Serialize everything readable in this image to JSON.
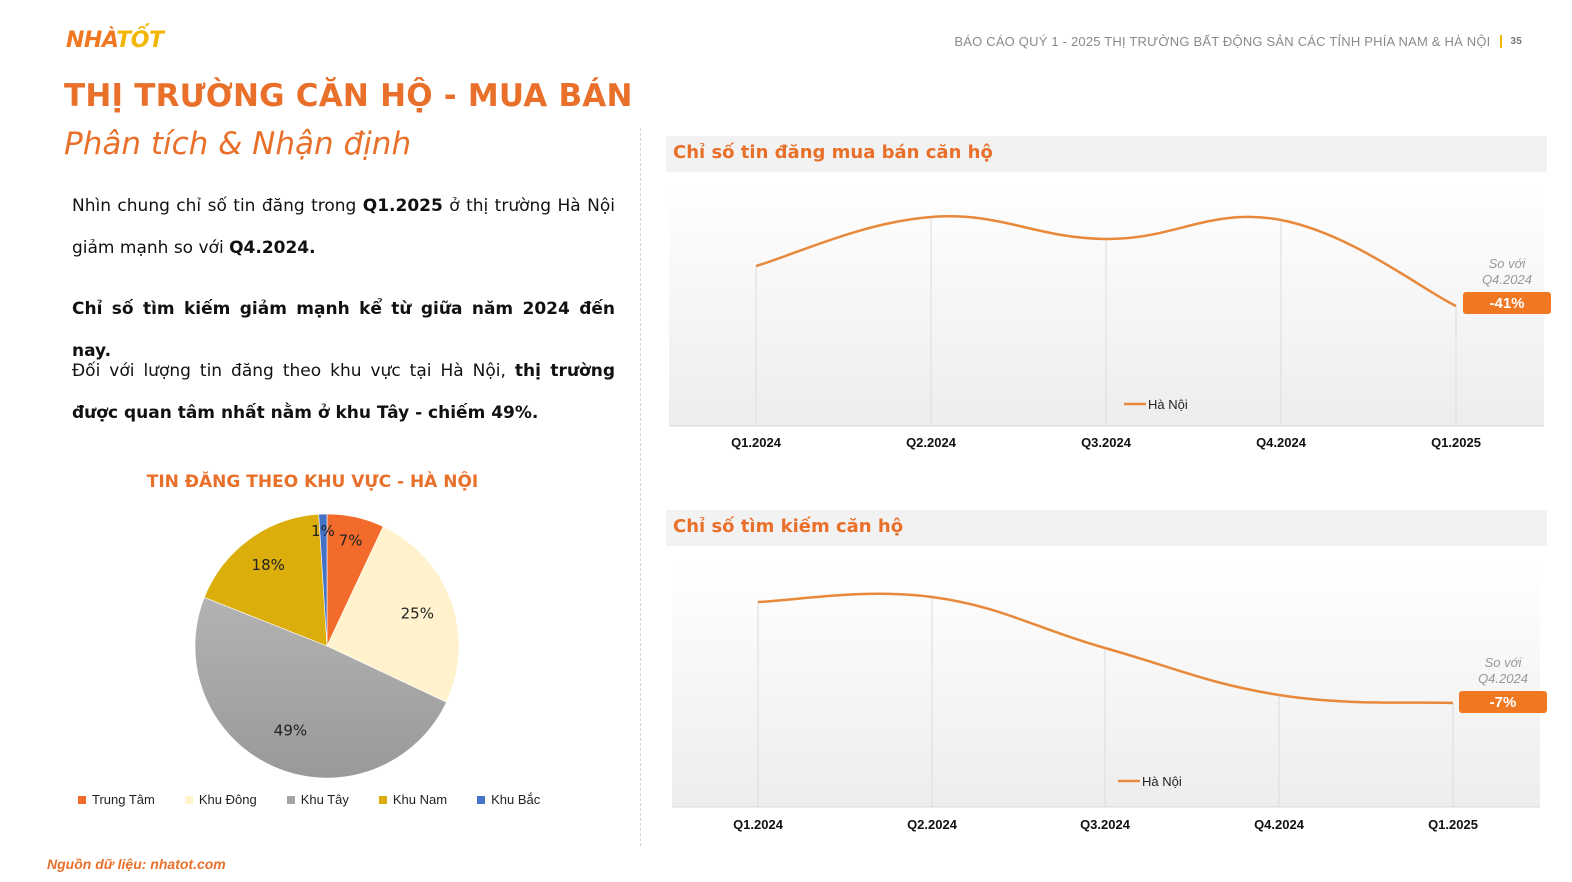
{
  "header": {
    "logo_part1": "NHÀ",
    "logo_part2": "TỐT",
    "report_title": "BÁO CÁO QUÝ 1 - 2025 THỊ TRƯỜNG BẤT ĐỘNG SẢN CÁC TỈNH PHÍA NAM & HÀ NỘI",
    "page_number": "35"
  },
  "title": "THỊ TRƯỜNG CĂN HỘ - MUA BÁN",
  "subtitle": "Phân tích & Nhận định",
  "paragraphs": {
    "p1_a": "Nhìn chung chỉ số tin đăng trong ",
    "p1_b": "Q1.2025",
    "p1_c": " ở thị trường Hà Nội giảm mạnh so với ",
    "p1_d": "Q4.2024.",
    "p2": "Chỉ số tìm kiếm giảm mạnh kể từ giữa năm 2024 đến nay.",
    "p3_a": "Đối với lượng tin đăng theo khu vực tại Hà Nội, ",
    "p3_b": "thị trường được quan tâm nhất nằm ở khu Tây - chiếm 49%."
  },
  "source": "Nguồn dữ liệu: nhatot.com",
  "colors": {
    "accent": "#e8702a",
    "logo_yellow": "#f2b705"
  },
  "chart_data": [
    {
      "type": "pie",
      "title": "TIN ĐĂNG THEO KHU VỰC -  HÀ NỘI",
      "categories": [
        "Trung Tâm",
        "Khu Đông",
        "Khu Tây",
        "Khu Nam",
        "Khu Bắc"
      ],
      "values": [
        7,
        25,
        49,
        18,
        1
      ],
      "labels": [
        "7%",
        "25%",
        "49%",
        "18%",
        "1%"
      ],
      "colors": [
        "#f26b2a",
        "#fff2cc",
        "#a6a6a6",
        "#dbae0c",
        "#4472c4"
      ],
      "legend": "bottom"
    },
    {
      "type": "line",
      "title": "Chỉ số tin đăng mua bán căn hộ",
      "categories": [
        "Q1.2024",
        "Q2.2024",
        "Q3.2024",
        "Q4.2024",
        "Q1.2025"
      ],
      "series": [
        {
          "name": "Hà Nội",
          "values": [
            78,
            100,
            91,
            99,
            59
          ],
          "color": "#e8883a"
        }
      ],
      "annotation": {
        "label1": "So với",
        "label2": "Q4.2024",
        "badge": "-41%"
      },
      "ylim": [
        0,
        110
      ],
      "grid": true,
      "legend": "bottom-center"
    },
    {
      "type": "line",
      "title": "Chỉ số tìm kiếm căn hộ",
      "categories": [
        "Q1.2024",
        "Q2.2024",
        "Q3.2024",
        "Q4.2024",
        "Q1.2025"
      ],
      "series": [
        {
          "name": "Hà Nội",
          "values": [
            98,
            98,
            74,
            52,
            48
          ],
          "color": "#e8883a"
        }
      ],
      "annotation": {
        "label1": "So với",
        "label2": "Q4.2024",
        "badge": "-7%"
      },
      "ylim": [
        0,
        110
      ],
      "grid": true,
      "legend": "bottom-center"
    }
  ]
}
